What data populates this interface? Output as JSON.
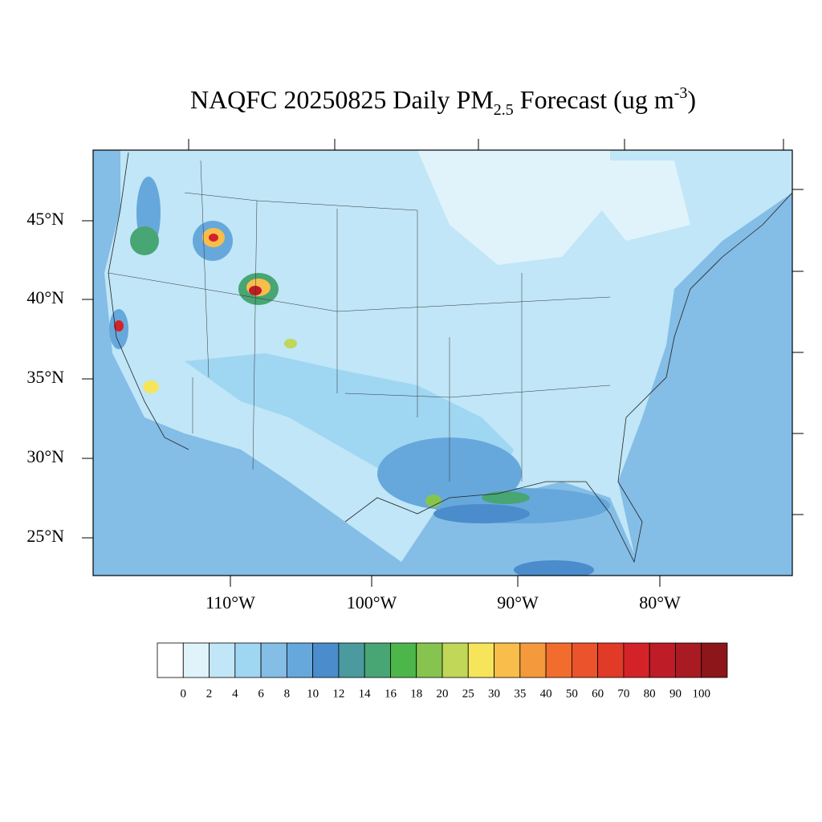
{
  "title": {
    "main": "NAQFC 20250825 Daily PM",
    "sub": "2.5",
    "middle": " Forecast (ug m",
    "sup": "-3",
    "end": ")"
  },
  "lat_labels": [
    "45°N",
    "40°N",
    "35°N",
    "30°N",
    "25°N"
  ],
  "lon_labels": [
    "110°W",
    "100°W",
    "90°W",
    "80°W"
  ],
  "colorbar": {
    "levels": [
      0,
      2,
      4,
      6,
      8,
      10,
      12,
      14,
      16,
      18,
      20,
      25,
      30,
      35,
      40,
      50,
      60,
      70,
      80,
      90,
      100
    ],
    "colors": [
      "#ffffff",
      "#e0f3fb",
      "#c0e6f7",
      "#9fd6f2",
      "#84bde6",
      "#66a8dc",
      "#4a8ccc",
      "#4a9a9f",
      "#48a574",
      "#4cb64a",
      "#86c44f",
      "#c0d757",
      "#f6e55a",
      "#f8bd4a",
      "#f49a3c",
      "#f26d2d",
      "#ea532b",
      "#e13a27",
      "#d42229",
      "#be1c26",
      "#a81b22",
      "#8c161a"
    ]
  }
}
